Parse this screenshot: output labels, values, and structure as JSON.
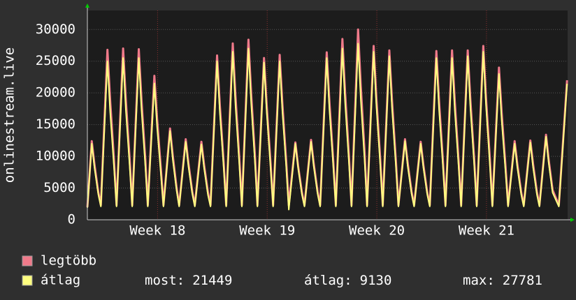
{
  "chart_data": {
    "type": "line",
    "y_label": "onlinestream.live",
    "x": [
      17.36,
      17.4,
      17.425,
      17.46,
      17.483,
      17.543,
      17.568,
      17.603,
      17.626,
      17.686,
      17.711,
      17.746,
      17.769,
      17.829,
      17.854,
      17.889,
      17.911,
      17.971,
      17.996,
      18.031,
      18.054,
      18.114,
      18.139,
      18.174,
      18.197,
      18.257,
      18.282,
      18.317,
      18.34,
      18.4,
      18.425,
      18.46,
      18.483,
      18.543,
      18.568,
      18.603,
      18.626,
      18.686,
      18.711,
      18.746,
      18.769,
      18.829,
      18.854,
      18.889,
      18.911,
      18.971,
      18.996,
      19.031,
      19.054,
      19.114,
      19.139,
      19.174,
      19.197,
      19.257,
      19.282,
      19.317,
      19.34,
      19.4,
      19.425,
      19.46,
      19.483,
      19.543,
      19.568,
      19.603,
      19.626,
      19.686,
      19.711,
      19.746,
      19.769,
      19.829,
      19.854,
      19.889,
      19.911,
      19.971,
      19.996,
      20.031,
      20.054,
      20.114,
      20.139,
      20.174,
      20.197,
      20.257,
      20.282,
      20.317,
      20.34,
      20.4,
      20.425,
      20.46,
      20.483,
      20.543,
      20.568,
      20.603,
      20.626,
      20.686,
      20.711,
      20.746,
      20.769,
      20.829,
      20.854,
      20.889,
      20.911,
      20.971,
      20.996,
      21.031,
      21.054,
      21.114,
      21.139,
      21.174,
      21.197,
      21.257,
      21.282,
      21.317,
      21.34,
      21.4,
      21.425,
      21.46,
      21.483,
      21.543,
      21.568,
      21.603,
      21.66,
      21.735
    ],
    "series": [
      {
        "name": "legtöbb",
        "color": "#f07a8a",
        "values": [
          2000,
          12400,
          8700,
          4300,
          2300,
          26800,
          18800,
          9400,
          2300,
          27000,
          18900,
          9500,
          2300,
          26900,
          18800,
          9400,
          2300,
          22700,
          15900,
          7900,
          2300,
          14400,
          10100,
          5000,
          2300,
          12700,
          8900,
          4400,
          2300,
          12300,
          8600,
          4300,
          2300,
          25900,
          18100,
          9100,
          2300,
          27800,
          19500,
          9700,
          2300,
          28400,
          19900,
          9900,
          2300,
          25500,
          17900,
          8900,
          2300,
          26000,
          18200,
          9100,
          2300,
          12200,
          8500,
          4300,
          2300,
          12600,
          8800,
          4400,
          2300,
          26400,
          18500,
          9200,
          2300,
          28500,
          20000,
          10000,
          2300,
          30000,
          21000,
          10500,
          2300,
          27400,
          19200,
          9600,
          2300,
          26700,
          18700,
          9300,
          2300,
          12700,
          8900,
          4400,
          2300,
          12300,
          8600,
          4300,
          2300,
          26600,
          18600,
          9300,
          2300,
          26700,
          18700,
          9300,
          2300,
          26700,
          18700,
          9300,
          2300,
          27400,
          19200,
          9600,
          2300,
          24000,
          16800,
          8400,
          2300,
          12400,
          8700,
          4300,
          2300,
          12500,
          8800,
          4400,
          2300,
          13400,
          9400,
          4700,
          2300,
          22000
        ]
      },
      {
        "name": "átlag",
        "color": "#ffff80",
        "values": [
          1900,
          12000,
          8200,
          4000,
          2100,
          25000,
          17000,
          8300,
          2100,
          25500,
          17300,
          8400,
          2100,
          25500,
          17300,
          8400,
          2100,
          21500,
          14600,
          7100,
          2100,
          14000,
          9500,
          4600,
          2100,
          12300,
          8400,
          4100,
          2100,
          11900,
          8100,
          3900,
          2100,
          25000,
          17000,
          8300,
          2100,
          26500,
          18000,
          8700,
          2100,
          27000,
          18400,
          8900,
          2100,
          24800,
          16900,
          8200,
          2100,
          25000,
          17000,
          8300,
          1600,
          12000,
          8200,
          4000,
          2100,
          12300,
          8400,
          4100,
          2100,
          25500,
          17300,
          8400,
          2100,
          27000,
          18400,
          8900,
          2100,
          27781,
          18900,
          9200,
          2100,
          26500,
          18000,
          8700,
          2100,
          25800,
          17500,
          8500,
          2100,
          12400,
          8400,
          4100,
          2100,
          12000,
          8200,
          4000,
          2100,
          25500,
          17300,
          8400,
          2100,
          25500,
          17300,
          8400,
          2100,
          25800,
          17500,
          8500,
          2100,
          26500,
          18000,
          8700,
          2100,
          23000,
          15600,
          7600,
          2100,
          12000,
          8200,
          4000,
          2100,
          12200,
          8300,
          4000,
          2100,
          13100,
          8900,
          4300,
          2100,
          21449
        ]
      }
    ],
    "xlim": [
      17.36,
      21.74
    ],
    "xticks": [
      {
        "value": 18,
        "label": "Week 18"
      },
      {
        "value": 19,
        "label": "Week 19"
      },
      {
        "value": 20,
        "label": "Week 20"
      },
      {
        "value": 21,
        "label": "Week 21"
      }
    ],
    "ylim": [
      0,
      33000
    ],
    "yticks": [
      0,
      5000,
      10000,
      15000,
      20000,
      25000,
      30000
    ],
    "grid": true,
    "stats": [
      {
        "label": "most:",
        "value": 21449
      },
      {
        "label": "átlag:",
        "value": 9130
      },
      {
        "label": "max:",
        "value": 27781
      }
    ]
  }
}
